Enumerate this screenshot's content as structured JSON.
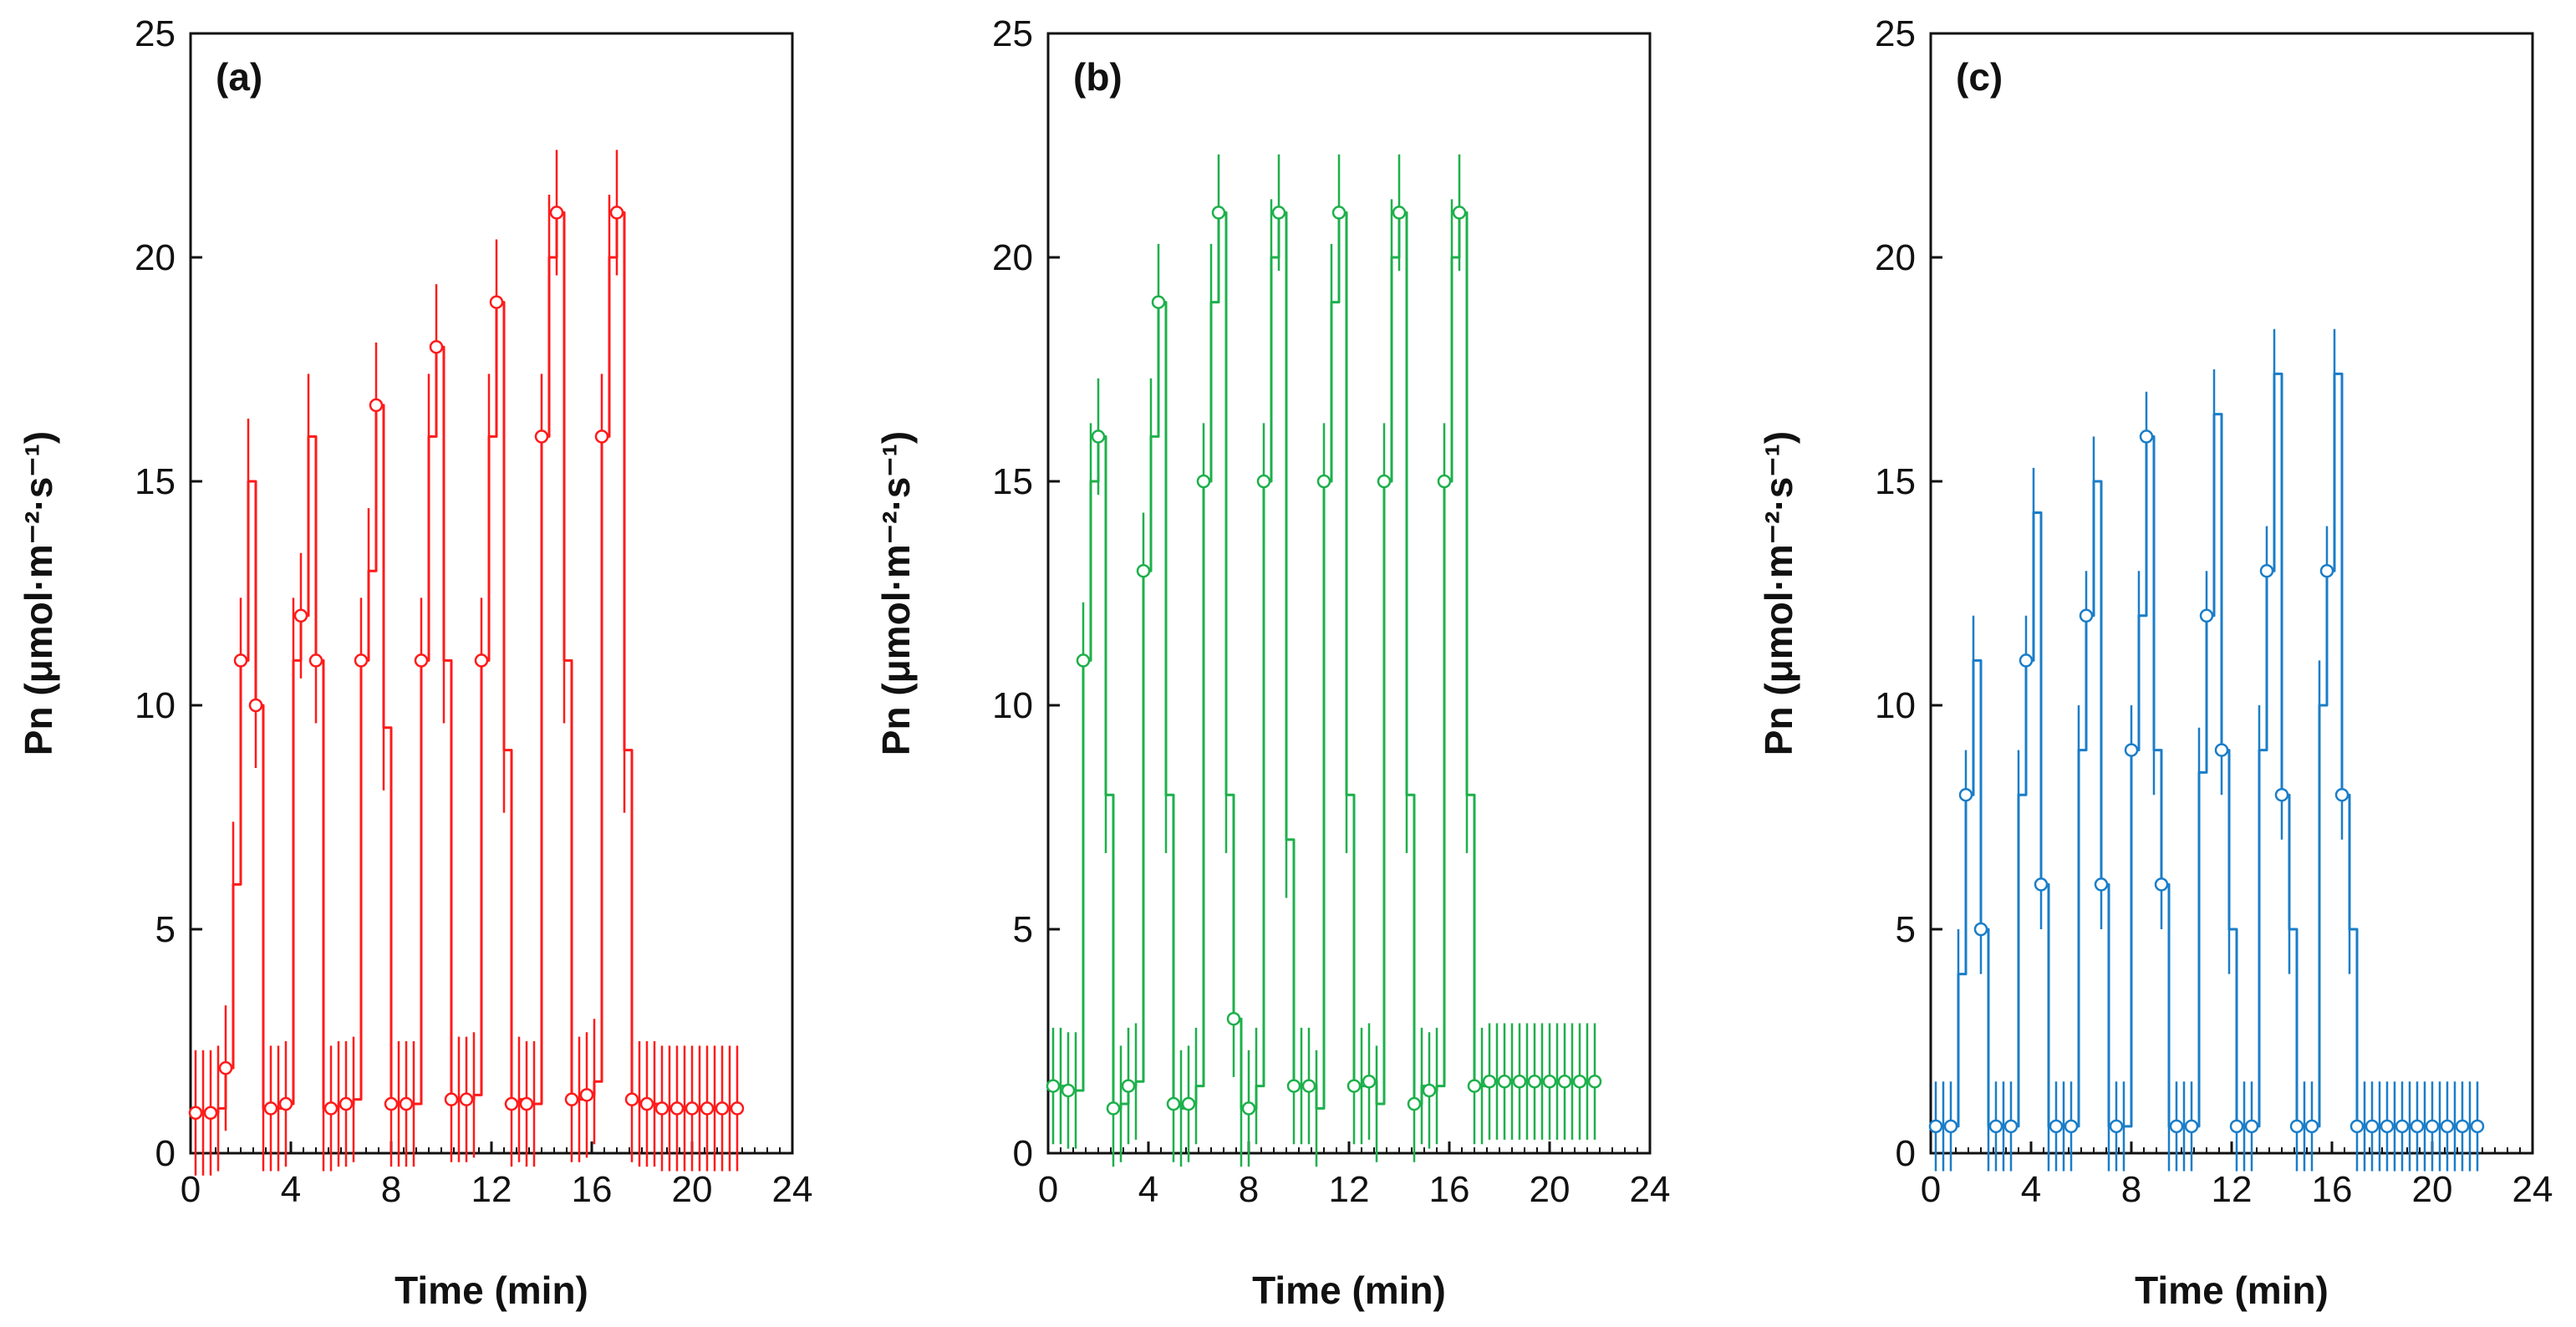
{
  "chart_data": [
    {
      "type": "line",
      "panel_label": "(a)",
      "title": "",
      "xlabel": "Time (min)",
      "ylabel": "Pn (μmol·m⁻²·s⁻¹)",
      "xlim": [
        0,
        24
      ],
      "ylim": [
        0,
        25
      ],
      "xticks": [
        "0",
        "4",
        "8",
        "12",
        "16",
        "20",
        "24"
      ],
      "yticks": [
        "0",
        "5",
        "10",
        "15",
        "20",
        "25"
      ],
      "grid": false,
      "color": "#ff1a1a",
      "error": 1.4,
      "series": [
        {
          "name": "Pn",
          "x": [
            0.2,
            0.5,
            0.8,
            1.1,
            1.4,
            1.7,
            2.0,
            2.3,
            2.6,
            2.9,
            3.2,
            3.5,
            3.8,
            4.1,
            4.4,
            4.7,
            5.0,
            5.3,
            5.6,
            5.9,
            6.2,
            6.5,
            6.8,
            7.1,
            7.4,
            7.7,
            8.0,
            8.3,
            8.6,
            8.9,
            9.2,
            9.5,
            9.8,
            10.1,
            10.4,
            10.7,
            11.0,
            11.3,
            11.6,
            11.9,
            12.2,
            12.5,
            12.8,
            13.1,
            13.4,
            13.7,
            14.0,
            14.3,
            14.6,
            14.9,
            15.2,
            15.5,
            15.8,
            16.1,
            16.4,
            16.7,
            17.0,
            17.3,
            17.6,
            17.9,
            18.2,
            18.5,
            18.8,
            19.1,
            19.4,
            19.7,
            20.0,
            20.3,
            20.6,
            20.9,
            21.2,
            21.5,
            21.8
          ],
          "y": [
            0.9,
            0.9,
            0.9,
            1.0,
            1.9,
            6.0,
            11.0,
            15.0,
            10.0,
            1.0,
            1.0,
            1.0,
            1.1,
            11.0,
            12.0,
            16.0,
            11.0,
            1.0,
            1.0,
            1.1,
            1.1,
            1.2,
            11.0,
            13.0,
            16.7,
            9.5,
            1.1,
            1.1,
            1.1,
            1.1,
            11.0,
            16.0,
            18.0,
            11.0,
            1.2,
            1.2,
            1.2,
            1.3,
            11.0,
            16.0,
            19.0,
            9.0,
            1.1,
            1.2,
            1.1,
            1.1,
            16.0,
            20.0,
            21.0,
            11.0,
            1.2,
            1.2,
            1.3,
            1.6,
            16.0,
            20.0,
            21.0,
            9.0,
            1.2,
            1.1,
            1.1,
            1.1,
            1.0,
            1.0,
            1.0,
            1.0,
            1.0,
            1.0,
            1.0,
            1.0,
            1.0,
            1.0,
            1.0
          ]
        }
      ]
    },
    {
      "type": "line",
      "panel_label": "(b)",
      "title": "",
      "xlabel": "Time (min)",
      "ylabel": "Pn (μmol·m⁻²·s⁻¹)",
      "xlim": [
        0,
        24
      ],
      "ylim": [
        0,
        25
      ],
      "xticks": [
        "0",
        "4",
        "8",
        "12",
        "16",
        "20",
        "24"
      ],
      "yticks": [
        "0",
        "5",
        "10",
        "15",
        "20",
        "25"
      ],
      "grid": false,
      "color": "#1db04b",
      "error": 1.3,
      "series": [
        {
          "name": "Pn",
          "x": [
            0.2,
            0.5,
            0.8,
            1.1,
            1.4,
            1.7,
            2.0,
            2.3,
            2.6,
            2.9,
            3.2,
            3.5,
            3.8,
            4.1,
            4.4,
            4.7,
            5.0,
            5.3,
            5.6,
            5.9,
            6.2,
            6.5,
            6.8,
            7.1,
            7.4,
            7.7,
            8.0,
            8.3,
            8.6,
            8.9,
            9.2,
            9.5,
            9.8,
            10.1,
            10.4,
            10.7,
            11.0,
            11.3,
            11.6,
            11.9,
            12.2,
            12.5,
            12.8,
            13.1,
            13.4,
            13.7,
            14.0,
            14.3,
            14.6,
            14.9,
            15.2,
            15.5,
            15.8,
            16.1,
            16.4,
            16.7,
            17.0,
            17.3,
            17.6,
            17.9,
            18.2,
            18.5,
            18.8,
            19.1,
            19.4,
            19.7,
            20.0,
            20.3,
            20.6,
            20.9,
            21.2,
            21.5,
            21.8
          ],
          "y": [
            1.5,
            1.5,
            1.4,
            1.4,
            11.0,
            15.0,
            16.0,
            8.0,
            1.0,
            1.1,
            1.5,
            1.6,
            13.0,
            16.0,
            19.0,
            8.0,
            1.1,
            1.0,
            1.1,
            1.5,
            15.0,
            19.0,
            21.0,
            8.0,
            3.0,
            1.0,
            1.0,
            1.5,
            15.0,
            20.0,
            21.0,
            7.0,
            1.5,
            1.5,
            1.5,
            1.0,
            15.0,
            19.0,
            21.0,
            8.0,
            1.5,
            1.5,
            1.6,
            1.1,
            15.0,
            20.0,
            21.0,
            8.0,
            1.1,
            1.5,
            1.4,
            1.5,
            15.0,
            20.0,
            21.0,
            8.0,
            1.5,
            1.5,
            1.6,
            1.6,
            1.6,
            1.6,
            1.6,
            1.6,
            1.6,
            1.6,
            1.6,
            1.6,
            1.6,
            1.6,
            1.6,
            1.6,
            1.6
          ]
        }
      ]
    },
    {
      "type": "line",
      "panel_label": "(c)",
      "title": "",
      "xlabel": "Time (min)",
      "ylabel": "Pn (μmol·m⁻²·s⁻¹)",
      "xlim": [
        0,
        24
      ],
      "ylim": [
        0,
        25
      ],
      "xticks": [
        "0",
        "4",
        "8",
        "12",
        "16",
        "20",
        "24"
      ],
      "yticks": [
        "0",
        "5",
        "10",
        "15",
        "20",
        "25"
      ],
      "grid": false,
      "color": "#1a7dc8",
      "error": 1.0,
      "series": [
        {
          "name": "Pn",
          "x": [
            0.2,
            0.5,
            0.8,
            1.1,
            1.4,
            1.7,
            2.0,
            2.3,
            2.6,
            2.9,
            3.2,
            3.5,
            3.8,
            4.1,
            4.4,
            4.7,
            5.0,
            5.3,
            5.6,
            5.9,
            6.2,
            6.5,
            6.8,
            7.1,
            7.4,
            7.7,
            8.0,
            8.3,
            8.6,
            8.9,
            9.2,
            9.5,
            9.8,
            10.1,
            10.4,
            10.7,
            11.0,
            11.3,
            11.6,
            11.9,
            12.2,
            12.5,
            12.8,
            13.1,
            13.4,
            13.7,
            14.0,
            14.3,
            14.6,
            14.9,
            15.2,
            15.5,
            15.8,
            16.1,
            16.4,
            16.7,
            17.0,
            17.3,
            17.6,
            17.9,
            18.2,
            18.5,
            18.8,
            19.1,
            19.4,
            19.7,
            20.0,
            20.3,
            20.6,
            20.9,
            21.2,
            21.5,
            21.8
          ],
          "y": [
            0.6,
            0.6,
            0.6,
            4.0,
            8.0,
            11.0,
            5.0,
            0.6,
            0.6,
            0.6,
            0.6,
            8.0,
            11.0,
            14.3,
            6.0,
            0.6,
            0.6,
            0.6,
            0.6,
            9.0,
            12.0,
            15.0,
            6.0,
            0.6,
            0.6,
            0.6,
            9.0,
            12.0,
            16.0,
            9.0,
            6.0,
            0.6,
            0.6,
            0.6,
            0.6,
            8.5,
            12.0,
            16.5,
            9.0,
            5.0,
            0.6,
            0.6,
            0.6,
            9.0,
            13.0,
            17.4,
            8.0,
            5.0,
            0.6,
            0.6,
            0.6,
            10.0,
            13.0,
            17.4,
            8.0,
            5.0,
            0.6,
            0.6,
            0.6,
            0.6,
            0.6,
            0.6,
            0.6,
            0.6,
            0.6,
            0.6,
            0.6,
            0.6,
            0.6,
            0.6,
            0.6,
            0.6,
            0.6
          ]
        }
      ]
    }
  ]
}
